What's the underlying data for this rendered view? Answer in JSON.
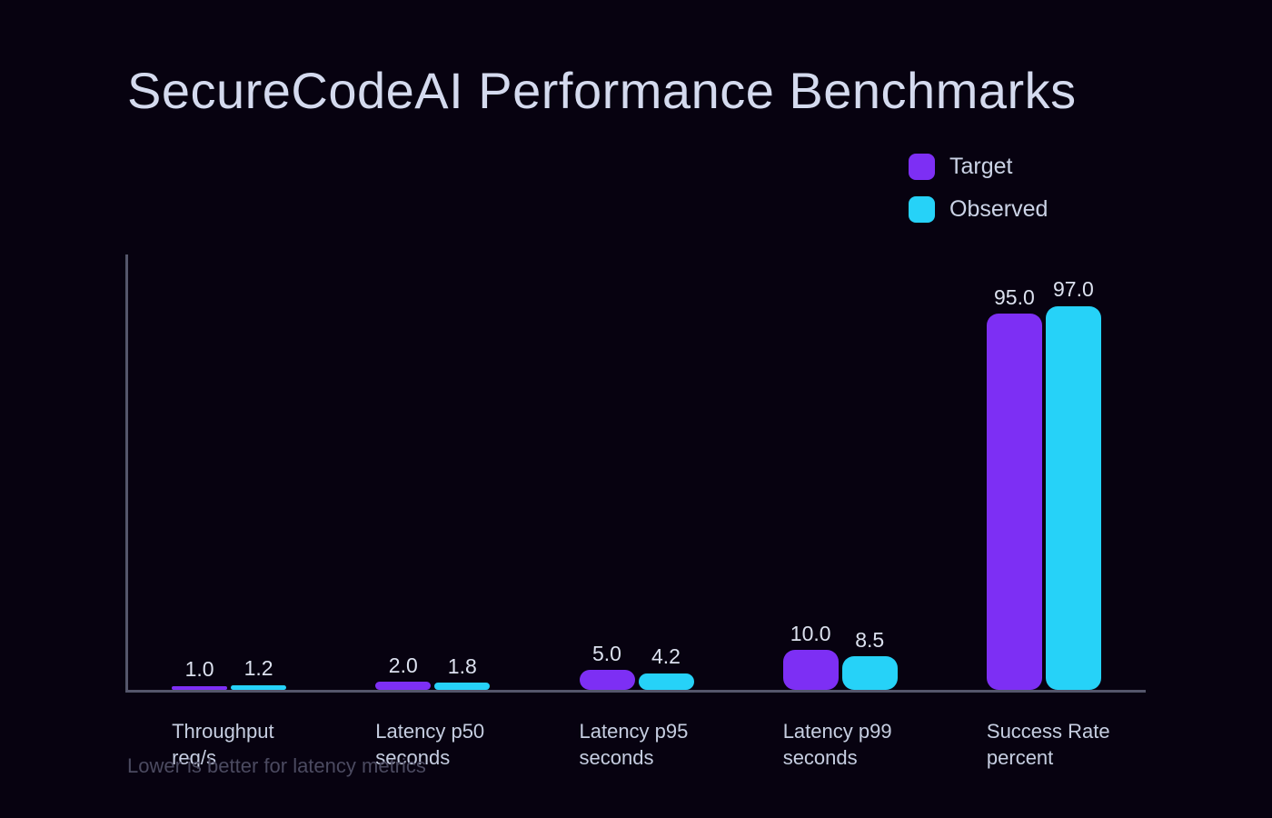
{
  "chart_data": {
    "type": "bar",
    "title": "SecureCodeAI Performance Benchmarks",
    "annotation": "Lower is better for latency metrics",
    "categories": [
      "Throughput\nreq/s",
      "Latency p50\nseconds",
      "Latency p95\nseconds",
      "Latency p99\nseconds",
      "Success Rate\npercent"
    ],
    "series": [
      {
        "name": "Target",
        "color": "#7d2ff4",
        "values": [
          1.0,
          2.0,
          5.0,
          10.0,
          95.0
        ]
      },
      {
        "name": "Observed",
        "color": "#26d2f8",
        "values": [
          1.2,
          1.8,
          4.2,
          8.5,
          97.0
        ]
      }
    ],
    "value_labels": [
      "1.0",
      "1.2",
      "2.0",
      "1.8",
      "5.0",
      "4.2",
      "10.0",
      "8.5",
      "95.0",
      "97.0"
    ],
    "value_label_decimals": 1,
    "xlabel": "",
    "ylabel": "",
    "ylim": [
      0,
      110
    ],
    "grid": false,
    "legend_position": "upper right",
    "colors": {
      "background": "#070210",
      "axis_line": "#54566b",
      "title_text": "#d4daee",
      "legend_text": "#cbd3e6",
      "value_label_text": "#dce1ef",
      "category_label_text": "#c6cee1",
      "annotation_text": "#4b4a60",
      "target_bar": "#7d2ff4",
      "observed_bar": "#26d2f8"
    }
  }
}
